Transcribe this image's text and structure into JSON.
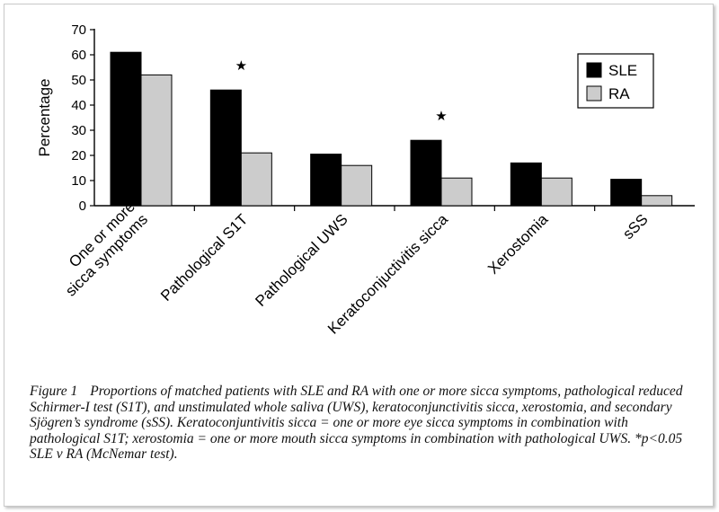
{
  "figure": {
    "label": "Figure 1",
    "caption": "Proportions of matched patients with SLE and RA with one or more sicca symptoms, pathological reduced Schirmer-I test (S1T), and unstimulated whole saliva (UWS), keratoconjunctivitis sicca, xerostomia, and secondary Sjögren’s syndrome (sSS). Keratoconjuntivitis sicca = one or more eye sicca symptoms in combination with pathological S1T; xerostomia = one or more mouth sicca symptoms in combination with pathological UWS. *p<0.05 SLE v RA (McNemar test)."
  },
  "chart_data": {
    "type": "bar",
    "title": "",
    "xlabel": "",
    "ylabel": "Percentage",
    "ylim": [
      0,
      70
    ],
    "yticks": [
      0,
      10,
      20,
      30,
      40,
      50,
      60,
      70
    ],
    "grid": false,
    "legend_position": "top-right",
    "categories": [
      [
        "One or more",
        "sicca symptoms"
      ],
      [
        "Pathological S1T"
      ],
      [
        "Pathological UWS"
      ],
      [
        "Keratoconjuctivitis sicca"
      ],
      [
        "Xerostomia"
      ],
      [
        "sSS"
      ]
    ],
    "series": [
      {
        "name": "SLE",
        "color": "#000000",
        "values": [
          61,
          46,
          20.5,
          26,
          17,
          10.5
        ]
      },
      {
        "name": "RA",
        "color": "#cccccc",
        "values": [
          52,
          21,
          16,
          11,
          11,
          4
        ]
      }
    ],
    "annotations": [
      {
        "category_index": 1,
        "text": "★"
      },
      {
        "category_index": 3,
        "text": "★"
      }
    ]
  }
}
